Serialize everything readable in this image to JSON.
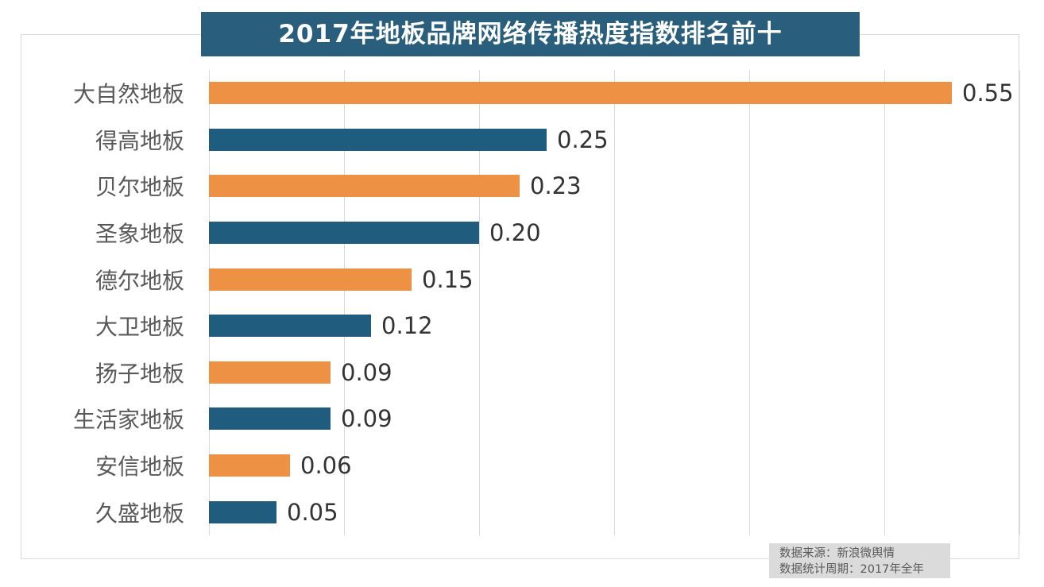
{
  "title": "2017年地板品牌网络传播热度指数排名前十",
  "footer": {
    "source_line": "数据来源：新浪微舆情",
    "period_line": "数据统计周期：2017年全年"
  },
  "colors": {
    "title_bg": "#295F7D",
    "bar_orange": "#ED9144",
    "bar_teal": "#1F5C7E",
    "gridline": "#D9D9D9",
    "category_text": "#595959",
    "value_text": "#333333",
    "footer_bg": "#DBDBDB",
    "footer_text": "#595959"
  },
  "chart_data": {
    "type": "bar",
    "orientation": "horizontal",
    "title": "2017年地板品牌网络传播热度指数排名前十",
    "categories": [
      "大自然地板",
      "得高地板",
      "贝尔地板",
      "圣象地板",
      "德尔地板",
      "大卫地板",
      "扬子地板",
      "生活家地板",
      "安信地板",
      "久盛地板"
    ],
    "values": [
      0.55,
      0.25,
      0.23,
      0.2,
      0.15,
      0.12,
      0.09,
      0.09,
      0.06,
      0.05
    ],
    "value_labels": [
      "0.55",
      "0.25",
      "0.23",
      "0.20",
      "0.15",
      "0.12",
      "0.09",
      "0.09",
      "0.06",
      "0.05"
    ],
    "bar_color_pattern": [
      "#ED9144",
      "#1F5C7E"
    ],
    "xlabel": "",
    "ylabel": "",
    "xlim": [
      0,
      0.6
    ],
    "gridline_interval": 0.1,
    "grid": "vertical-on",
    "legend": "none",
    "annotations": [
      "数据来源：新浪微舆情",
      "数据统计周期：2017年全年"
    ]
  }
}
